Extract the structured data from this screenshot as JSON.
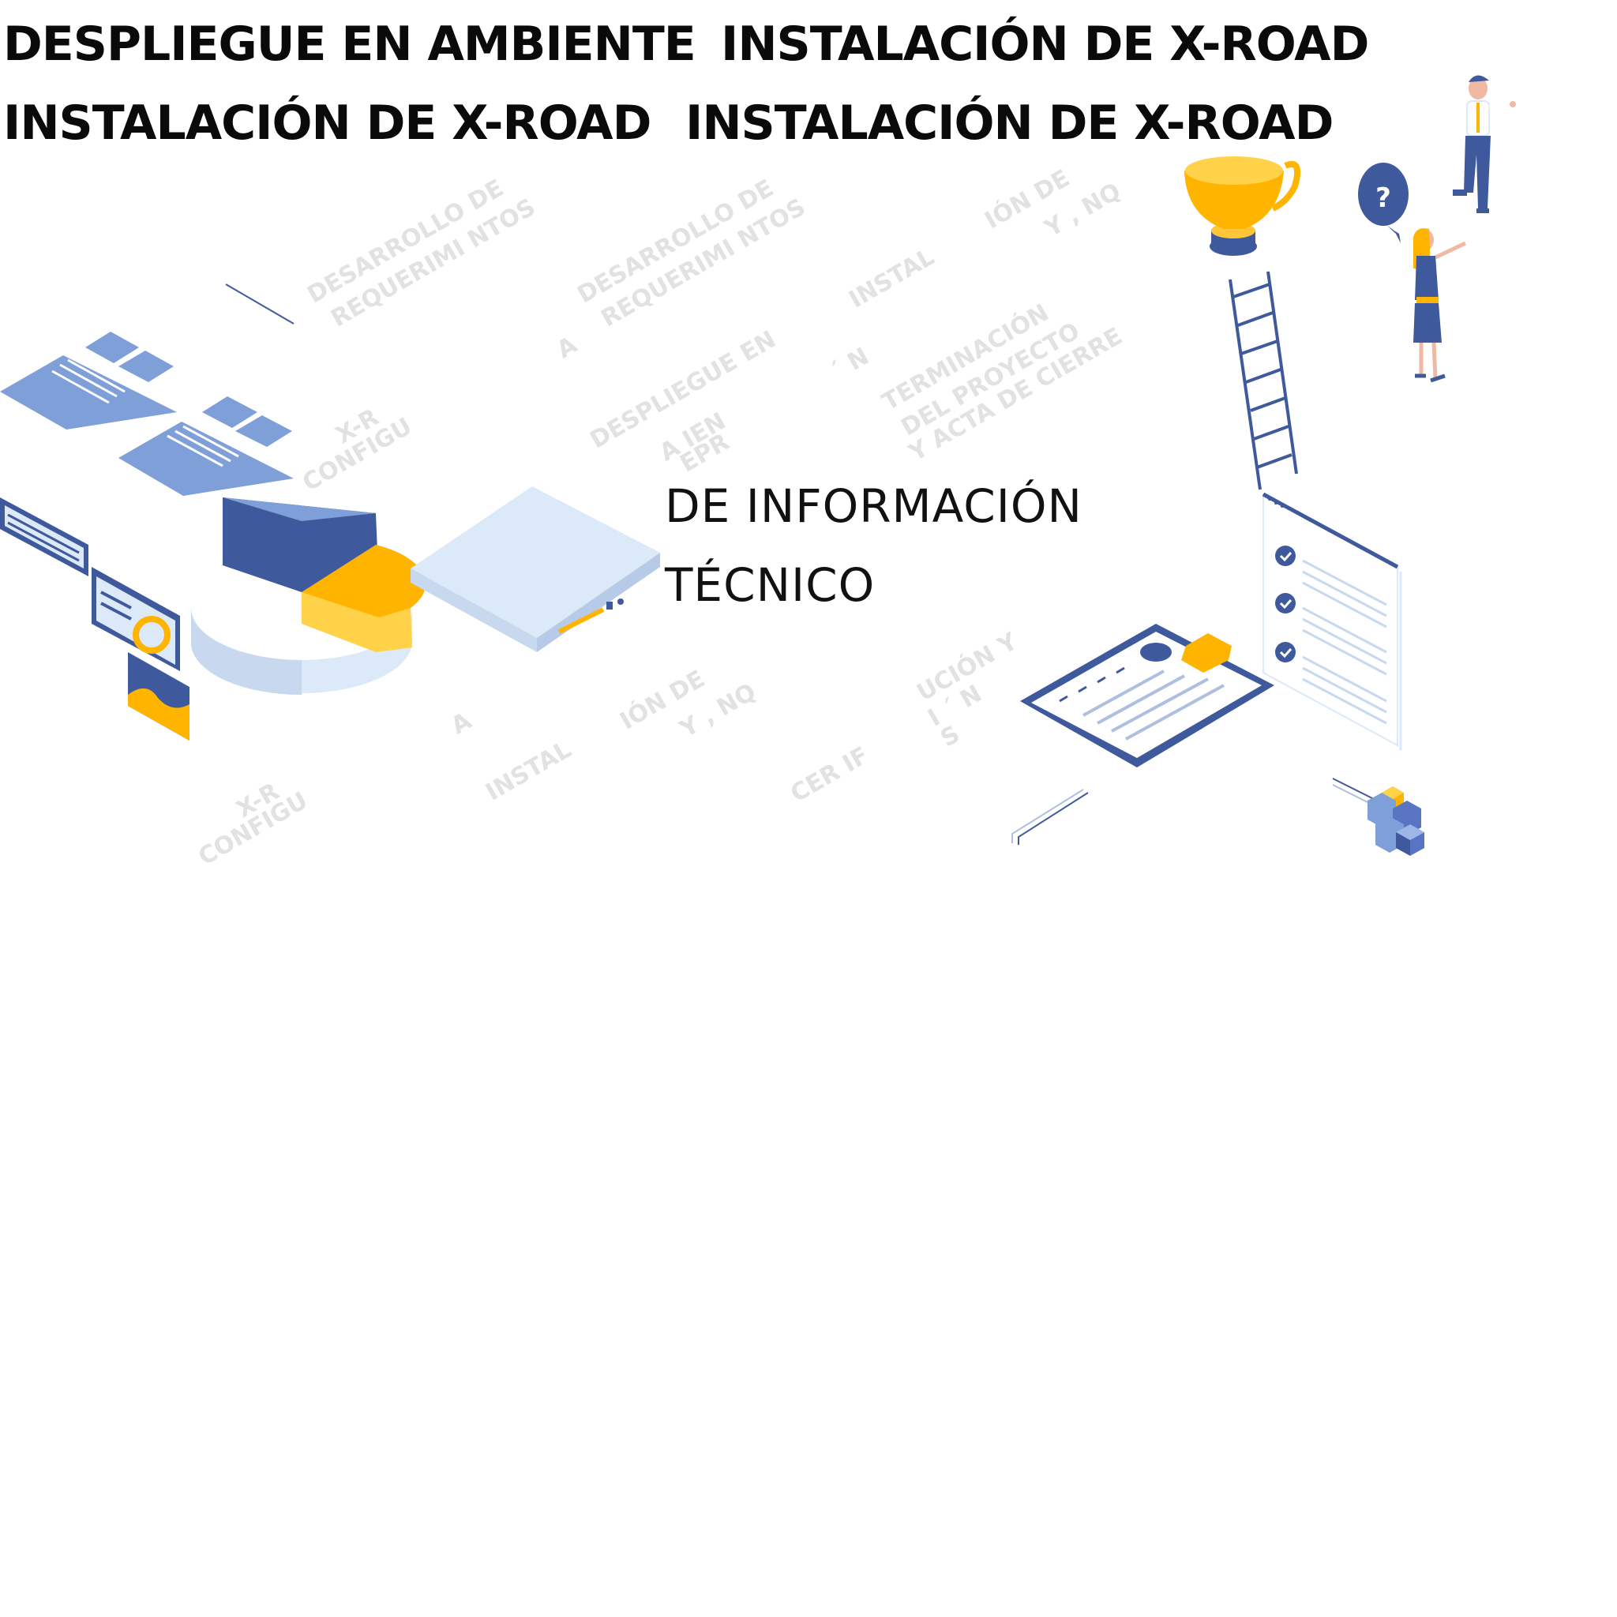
{
  "headings": [
    "DESPLIEGUE EN AMBIENTE",
    "INSTALACIÓN DE X-ROAD",
    "INSTALACIÓN DE X-ROAD",
    "INSTALACIÓN DE X-ROAD"
  ],
  "center_text": {
    "line1": "DE INFORMACIÓN",
    "line2": "TÉCNICO"
  },
  "faded_labels": [
    "DESARROLLO DE",
    "REQUERIMI  NTOS",
    "DESARROLLO DE",
    "REQUERIMI  NTOS",
    "IÓN DE",
    "Y ,  NQ",
    "INSTAL",
    "A",
    "X-R",
    "CONFIGU",
    "DESPLIEGUE EN",
    "A    IEN",
    "EPR",
    "´ N",
    "TERMINACIÓN",
    "DEL PROYECTO",
    "Y ACTA DE CIERRE",
    "A",
    "IÓN DE",
    "Y ,  NQ",
    "INSTAL",
    "UCIÓN Y",
    "I ´ N",
    "S",
    "CER  IF",
    "X-R",
    "CONFIGU"
  ],
  "icons": {
    "question_bubble": "question-mark-icon",
    "trophy": "trophy-icon",
    "checklist": "checkmark-icon",
    "cubes": "cubes-icon"
  },
  "colors": {
    "primary_blue": "#3f5a9c",
    "light_blue": "#7e9fd8",
    "pale_blue": "#dce9f8",
    "accent_orange": "#ffb400",
    "text_dark": "#0a0a0a",
    "faded_text": "#e2e2e2"
  }
}
